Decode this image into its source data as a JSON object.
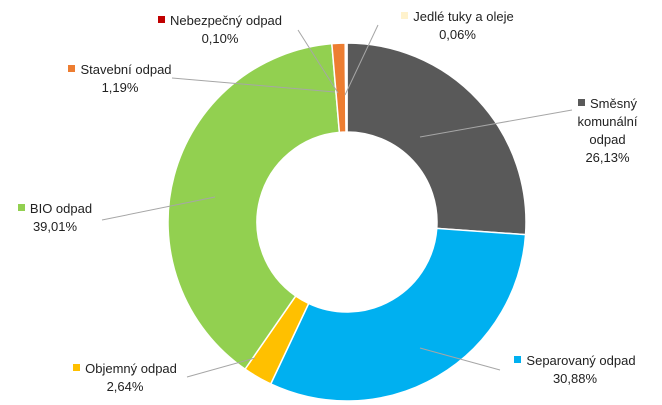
{
  "chart_data": {
    "type": "doughnut",
    "categories": [
      "Směsný komunální odpad",
      "Separovaný odpad",
      "Objemný odpad",
      "BIO odpad",
      "Stavební odpad",
      "Nebezpečný odpad",
      "Jedlé tuky a oleje"
    ],
    "values": [
      26.13,
      30.88,
      2.64,
      39.01,
      1.19,
      0.1,
      0.06
    ],
    "value_labels": [
      "26,13%",
      "30,88%",
      "2,64%",
      "39,01%",
      "1,19%",
      "0,10%",
      "0,06%"
    ],
    "colors": [
      "#595959",
      "#00b0f0",
      "#ffc000",
      "#92d050",
      "#ed7d31",
      "#c00000",
      "#fff2cc"
    ]
  }
}
